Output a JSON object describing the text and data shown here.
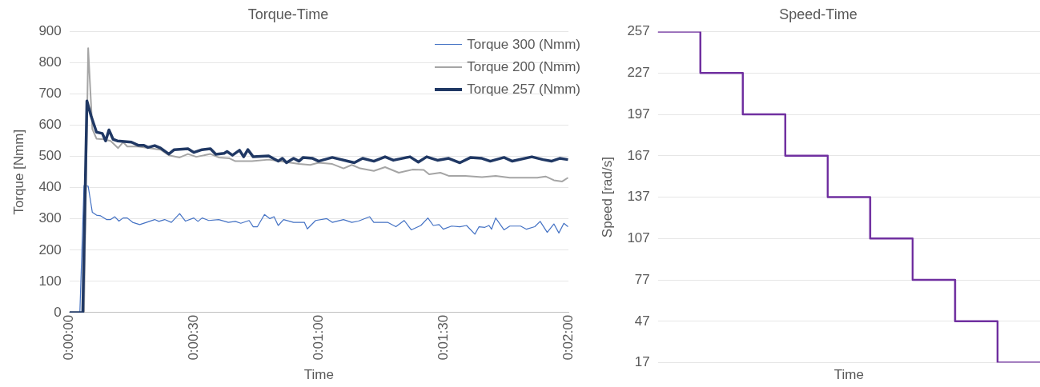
{
  "chart_data": [
    {
      "type": "line",
      "title": "Torque-Time",
      "xlabel": "Time",
      "ylabel": "Torque [Nmm]",
      "xlim": [
        0,
        120
      ],
      "xticks": [
        {
          "value": 0,
          "label": "0:00:00"
        },
        {
          "value": 30,
          "label": "0:00:30"
        },
        {
          "value": 60,
          "label": "0:01:00"
        },
        {
          "value": 90,
          "label": "0:01:30"
        },
        {
          "value": 120,
          "label": "0:02:00"
        }
      ],
      "ylim": [
        0,
        900
      ],
      "yticks": [
        0,
        100,
        200,
        300,
        400,
        500,
        600,
        700,
        800,
        900
      ],
      "grid": "y",
      "legend": "top right",
      "marker": "none",
      "series": [
        {
          "name": "Torque 300 (Nmm)",
          "color": "#4472c4",
          "x": [
            0,
            2.5,
            3.5,
            4.5,
            5.5,
            6.5,
            7.5,
            8.9,
            9.9,
            10.9,
            11.9,
            12.9,
            13.9,
            15.2,
            16.9,
            18.5,
            20.5,
            21.5,
            22.9,
            24.5,
            26.5,
            27.9,
            29.9,
            30.9,
            31.9,
            33.5,
            35.9,
            38.2,
            39.9,
            41.2,
            43.2,
            44.2,
            45.2,
            46.9,
            48.2,
            49.2,
            50.2,
            51.5,
            53.9,
            56.5,
            57.2,
            59.2,
            61.9,
            63.2,
            65.9,
            67.9,
            69.5,
            72.2,
            73.2,
            76.5,
            78.5,
            80.5,
            82.2,
            84.5,
            86.2,
            87.5,
            88.9,
            89.9,
            91.9,
            93.9,
            95.5,
            97.5,
            98.5,
            99.9,
            100.9,
            101.5,
            102.5,
            104.5,
            105.9,
            108.5,
            109.9,
            111.9,
            113.2,
            114.9,
            116.5,
            117.7,
            118.9,
            119.9
          ],
          "values": [
            0,
            0,
            407,
            405,
            321,
            312,
            310,
            298,
            298,
            307,
            293,
            303,
            303,
            289,
            282,
            289,
            298,
            292,
            298,
            289,
            317,
            293,
            303,
            292,
            303,
            295,
            298,
            289,
            292,
            286,
            295,
            275,
            275,
            314,
            301,
            307,
            279,
            298,
            289,
            289,
            268,
            295,
            301,
            289,
            298,
            289,
            293,
            307,
            289,
            289,
            275,
            295,
            265,
            279,
            303,
            279,
            282,
            267,
            277,
            275,
            279,
            251,
            275,
            273,
            279,
            267,
            303,
            265,
            277,
            277,
            267,
            275,
            292,
            257,
            284,
            255,
            286,
            275
          ]
        },
        {
          "name": "Torque 200 (Nmm)",
          "color": "#a5a5a5",
          "x": [
            0,
            3.5,
            4.5,
            5.5,
            6.5,
            8.2,
            9.9,
            11.7,
            12.9,
            13.9,
            16.5,
            19.2,
            21.9,
            23.9,
            26.5,
            28.5,
            30.5,
            33.9,
            35.9,
            38.5,
            39.9,
            43.9,
            47.9,
            50.5,
            55.2,
            57.9,
            59.9,
            63.2,
            65.9,
            67.9,
            69.9,
            73.2,
            75.9,
            79.2,
            82.5,
            85.2,
            86.5,
            89.2,
            91.2,
            95.2,
            99.2,
            102.5,
            105.9,
            112.5,
            114.5,
            116.5,
            118.5,
            119.9
          ],
          "values": [
            0,
            0,
            847,
            588,
            557,
            555,
            550,
            527,
            546,
            532,
            532,
            527,
            522,
            504,
            497,
            508,
            499,
            508,
            497,
            494,
            485,
            485,
            490,
            485,
            476,
            473,
            480,
            476,
            462,
            473,
            462,
            454,
            466,
            448,
            458,
            457,
            443,
            448,
            438,
            438,
            434,
            438,
            432,
            432,
            436,
            424,
            420,
            432
          ]
        },
        {
          "name": "Torque 257 (Nmm)",
          "color": "#203864",
          "x": [
            0,
            3.2,
            4.2,
            5.2,
            6.5,
            7.9,
            8.7,
            9.5,
            10.5,
            11.5,
            13.2,
            14.9,
            16.5,
            17.9,
            18.9,
            20.5,
            21.9,
            23.9,
            25.2,
            28.5,
            29.9,
            31.9,
            33.9,
            35.2,
            37.2,
            37.9,
            39.2,
            40.9,
            41.9,
            42.9,
            44.2,
            47.9,
            50.2,
            51.2,
            52.2,
            53.9,
            55.2,
            56.2,
            58.5,
            59.9,
            63.2,
            68.5,
            70.5,
            73.2,
            75.9,
            77.9,
            81.9,
            83.9,
            85.9,
            88.5,
            91.2,
            93.9,
            96.5,
            99.2,
            101.2,
            104.5,
            106.5,
            111.2,
            113.9,
            115.9,
            117.9,
            119.9
          ],
          "values": [
            0,
            0,
            678,
            630,
            578,
            574,
            550,
            585,
            555,
            550,
            548,
            546,
            536,
            536,
            529,
            535,
            527,
            508,
            522,
            525,
            513,
            522,
            525,
            507,
            510,
            516,
            504,
            520,
            499,
            522,
            499,
            502,
            485,
            494,
            480,
            494,
            485,
            497,
            494,
            485,
            497,
            480,
            494,
            485,
            499,
            488,
            499,
            482,
            499,
            488,
            494,
            480,
            497,
            494,
            485,
            497,
            485,
            499,
            490,
            485,
            494,
            490
          ]
        }
      ]
    },
    {
      "type": "step",
      "title": "Speed-Time",
      "xlabel": "Time",
      "ylabel": "Speed [rad/s]",
      "categories": [
        null,
        null,
        null,
        null,
        null,
        null,
        null,
        null,
        null,
        null
      ],
      "ylim": [
        17,
        257
      ],
      "yticks": [
        17,
        47,
        77,
        107,
        137,
        167,
        197,
        227,
        257
      ],
      "grid": "y",
      "tick_labels": "y",
      "marker": "none",
      "series": [
        {
          "color": "#7030a0",
          "values": [
            257,
            227,
            197,
            167,
            137,
            107,
            77,
            47,
            17,
            17
          ]
        }
      ]
    }
  ]
}
